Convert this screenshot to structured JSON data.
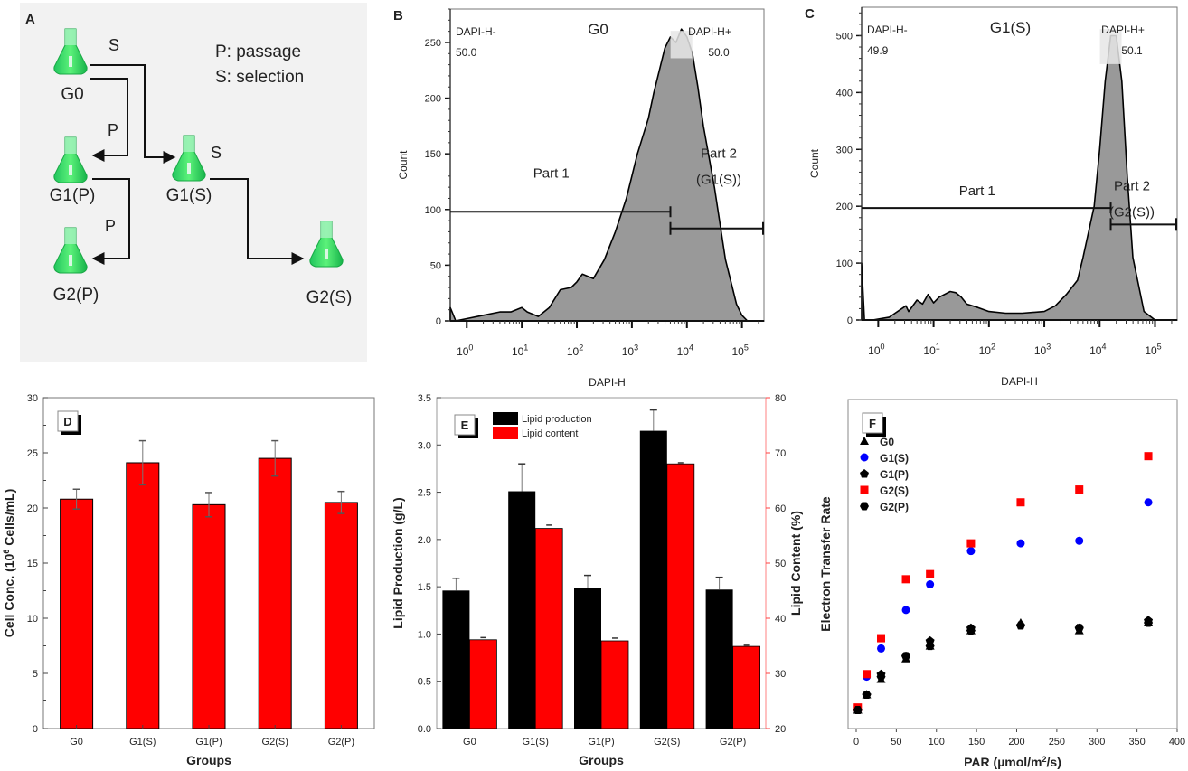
{
  "chart_data": [
    {
      "panel": "A",
      "type": "diagram",
      "legend": [
        "P: passage",
        "S: selection"
      ],
      "nodes": [
        "G0",
        "G1(P)",
        "G1(S)",
        "G2(P)",
        "G2(S)"
      ],
      "edges": [
        {
          "from": "G0",
          "to": "G1(S)",
          "label": "S"
        },
        {
          "from": "G0",
          "to": "G1(P)",
          "label": "P"
        },
        {
          "from": "G1(P)",
          "to": "G2(P)",
          "label": "P"
        },
        {
          "from": "G1(S)",
          "to": "G2(S)",
          "label": "S"
        }
      ]
    },
    {
      "panel": "B",
      "type": "area",
      "title": "G0",
      "xlabel": "DAPI-H",
      "ylabel": "Count",
      "xscale": "log",
      "xlim_log10": [
        -0.3,
        5.4
      ],
      "ylim": [
        0,
        280
      ],
      "yticks": [
        0,
        50,
        100,
        150,
        200,
        250
      ],
      "xtick_labels": [
        "10^0",
        "10^1",
        "10^2",
        "10^3",
        "10^4",
        "10^5"
      ],
      "gate_left": {
        "label": "DAPI-H-",
        "value": "50.0"
      },
      "gate_right": {
        "label": "DAPI-H+",
        "value": "50.0"
      },
      "part1_label": "Part 1",
      "part2_label": "Part 2",
      "part2_sub": "(G1(S))",
      "gate_split_log10": 3.7,
      "part1_y": 98,
      "part2_y": 83,
      "x_log10": [
        -0.3,
        -0.2,
        0.0,
        0.3,
        0.6,
        0.8,
        1.0,
        1.1,
        1.3,
        1.5,
        1.7,
        1.9,
        2.0,
        2.1,
        2.3,
        2.5,
        2.7,
        2.9,
        3.0,
        3.1,
        3.3,
        3.4,
        3.5,
        3.6,
        3.7,
        3.8,
        3.9,
        4.0,
        4.1,
        4.2,
        4.3,
        4.5,
        4.7,
        4.9,
        5.0,
        5.1,
        5.4
      ],
      "y": [
        12,
        0,
        2,
        5,
        8,
        8,
        12,
        8,
        4,
        12,
        28,
        30,
        35,
        42,
        38,
        55,
        80,
        110,
        130,
        150,
        182,
        205,
        225,
        245,
        255,
        250,
        262,
        255,
        240,
        210,
        175,
        120,
        55,
        15,
        5,
        0,
        0
      ]
    },
    {
      "panel": "C",
      "type": "area",
      "title": "G1(S)",
      "xlabel": "DAPI-H",
      "ylabel": "Count",
      "xscale": "log",
      "xlim_log10": [
        -0.3,
        5.4
      ],
      "ylim": [
        0,
        550
      ],
      "yticks": [
        0,
        100,
        200,
        300,
        400,
        500
      ],
      "xtick_labels": [
        "10^0",
        "10^1",
        "10^2",
        "10^3",
        "10^4",
        "10^5"
      ],
      "gate_left": {
        "label": "DAPI-H-",
        "value": "49.9"
      },
      "gate_right": {
        "label": "DAPI-H+",
        "value": "50.1"
      },
      "part1_label": "Part 1",
      "part2_label": "Part 2",
      "part2_sub": "(G2(S))",
      "gate_split_log10": 4.2,
      "part1_y": 197,
      "part2_y": 168,
      "x_log10": [
        -0.3,
        -0.25,
        -0.1,
        0.2,
        0.5,
        0.55,
        0.7,
        0.8,
        0.9,
        1.0,
        1.1,
        1.3,
        1.4,
        1.5,
        1.6,
        1.8,
        2.0,
        2.3,
        2.6,
        3.0,
        3.2,
        3.4,
        3.6,
        3.7,
        3.9,
        4.0,
        4.1,
        4.2,
        4.3,
        4.4,
        4.5,
        4.6,
        4.8,
        5.0,
        5.4
      ],
      "y": [
        100,
        0,
        0,
        5,
        25,
        15,
        35,
        28,
        45,
        30,
        40,
        50,
        48,
        40,
        28,
        22,
        15,
        12,
        12,
        15,
        25,
        45,
        70,
        110,
        200,
        300,
        420,
        500,
        500,
        420,
        250,
        110,
        15,
        0,
        0
      ]
    },
    {
      "panel": "D",
      "type": "bar",
      "categories": [
        "G0",
        "G1(S)",
        "G1(P)",
        "G2(S)",
        "G2(P)"
      ],
      "values": [
        20.8,
        24.1,
        20.3,
        24.5,
        20.5
      ],
      "errors": [
        0.9,
        2.0,
        1.1,
        1.6,
        1.0
      ],
      "xlabel": "Groups",
      "ylabel": "Cell Conc. (10^6 Cells/mL)",
      "ylim": [
        0,
        30
      ],
      "yticks": [
        0,
        5,
        10,
        15,
        20,
        25,
        30
      ],
      "color": "#ff0000",
      "badge": "D"
    },
    {
      "panel": "E",
      "type": "bar",
      "categories": [
        "G0",
        "G1(S)",
        "G1(P)",
        "G2(S)",
        "G2(P)"
      ],
      "series": [
        {
          "name": "Lipid production",
          "axis": "left",
          "color": "#000000",
          "values": [
            1.46,
            2.51,
            1.49,
            3.15,
            1.47
          ],
          "errors": [
            0.13,
            0.29,
            0.13,
            0.22,
            0.13
          ]
        },
        {
          "name": "Lipid content",
          "axis": "right",
          "color": "#ff0000",
          "values": [
            36.1,
            56.3,
            35.9,
            68.0,
            34.9
          ],
          "errors": [
            0.4,
            0.6,
            0.5,
            0.2,
            0.2
          ]
        }
      ],
      "xlabel": "Groups",
      "ylabel": "Lipid Production (g/L)",
      "y2label": "Lipid Content (%)",
      "ylim": [
        0,
        3.5
      ],
      "yticks": [
        0.0,
        0.5,
        1.0,
        1.5,
        2.0,
        2.5,
        3.0,
        3.5
      ],
      "y2lim": [
        20,
        80
      ],
      "y2ticks": [
        20,
        30,
        40,
        50,
        60,
        70,
        80
      ],
      "badge": "E"
    },
    {
      "panel": "F",
      "type": "scatter",
      "xlabel": "PAR (µmol/m²/s)",
      "ylabel": "Electron Transfer Rate",
      "xlim": [
        0,
        400
      ],
      "xticks": [
        0,
        50,
        100,
        150,
        200,
        250,
        300,
        350,
        400
      ],
      "ylim": [
        0,
        100
      ],
      "badge": "F",
      "series": [
        {
          "name": "G0",
          "marker": "triangle",
          "color": "#000000",
          "x": [
            2,
            13,
            31,
            62,
            92,
            143,
            205,
            278,
            364
          ],
          "y": [
            3,
            9,
            15,
            23,
            28,
            34,
            37,
            34,
            37
          ]
        },
        {
          "name": "G1(S)",
          "marker": "circle",
          "color": "#0000ff",
          "x": [
            2,
            13,
            31,
            62,
            92,
            143,
            205,
            278,
            364
          ],
          "y": [
            3,
            16,
            27,
            42,
            52,
            65,
            68,
            69,
            84
          ]
        },
        {
          "name": "G1(P)",
          "marker": "pentagon",
          "color": "#000000",
          "x": [
            2,
            13,
            31,
            62,
            92,
            143,
            205,
            278,
            364
          ],
          "y": [
            3,
            9,
            17,
            24,
            30,
            35,
            36,
            35,
            38
          ]
        },
        {
          "name": "G2(S)",
          "marker": "square",
          "color": "#ff0000",
          "x": [
            2,
            13,
            31,
            62,
            92,
            143,
            205,
            278,
            364
          ],
          "y": [
            4,
            17,
            31,
            54,
            56,
            68,
            84,
            89,
            102
          ]
        },
        {
          "name": "G2(P)",
          "marker": "hexagon",
          "color": "#000000",
          "x": [
            2,
            13,
            31,
            62,
            92,
            143,
            205,
            278,
            364
          ],
          "y": [
            3,
            9,
            16,
            24,
            28,
            34,
            36,
            35,
            37
          ]
        }
      ]
    }
  ]
}
